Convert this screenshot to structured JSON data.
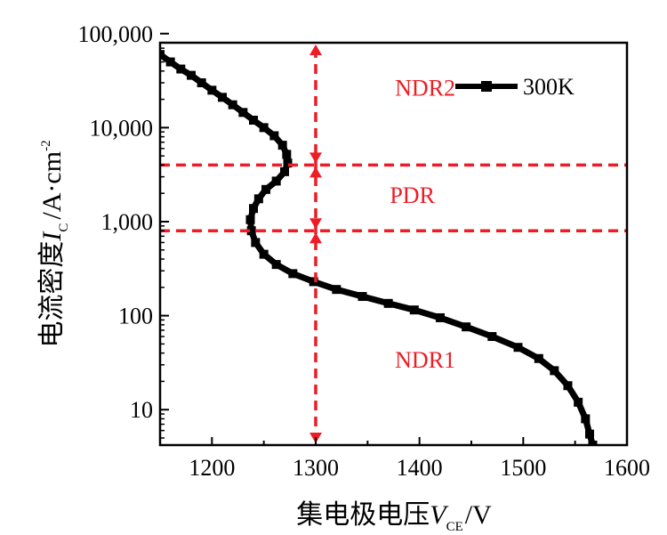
{
  "chart_data": {
    "type": "scatter",
    "title": "",
    "xlabel": {
      "main": "集电极电压",
      "var": "V",
      "sub": "CE",
      "unit": "/V"
    },
    "ylabel": {
      "main": "电流密度",
      "var": "I",
      "sub": "C",
      "unit": "/A·cm",
      "sup": "-2"
    },
    "xlim": [
      1150,
      1600
    ],
    "ylim": [
      4.2,
      80000
    ],
    "yscale": "log",
    "xticks": [
      1200,
      1300,
      1400,
      1500,
      1600
    ],
    "xtick_labels": [
      "1200",
      "1300",
      "1400",
      "1500",
      "1600"
    ],
    "yticks": [
      10,
      100,
      1000,
      10000,
      100000
    ],
    "ytick_labels": [
      "10",
      "100",
      "1,000",
      "10,000",
      "100,000"
    ],
    "grid": false,
    "legend": {
      "position": "top-right",
      "entries": [
        "300K"
      ]
    },
    "series": [
      {
        "name": "300K",
        "color": "#000000",
        "marker": "square",
        "x": [
          1150,
          1160,
          1170,
          1180,
          1190,
          1200,
          1210,
          1220,
          1230,
          1240,
          1250,
          1260,
          1268,
          1272,
          1273,
          1270,
          1262,
          1252,
          1245,
          1240,
          1237,
          1238,
          1242,
          1250,
          1262,
          1278,
          1298,
          1320,
          1345,
          1370,
          1395,
          1420,
          1445,
          1470,
          1495,
          1515,
          1530,
          1543,
          1553,
          1560,
          1564,
          1567
        ],
        "y": [
          60000,
          50000,
          42000,
          36000,
          30000,
          25000,
          21000,
          17500,
          14500,
          12000,
          10000,
          8200,
          6500,
          5200,
          4200,
          3400,
          2700,
          2200,
          1750,
          1380,
          1050,
          800,
          600,
          450,
          350,
          280,
          230,
          190,
          160,
          135,
          115,
          95,
          76,
          60,
          46,
          35,
          26,
          18,
          12,
          8,
          5.5,
          4.2
        ]
      }
    ],
    "reference_lines": [
      {
        "orientation": "horizontal",
        "y": 4000,
        "color": "#ee1c25"
      },
      {
        "orientation": "horizontal",
        "y": 800,
        "color": "#ee1c25"
      },
      {
        "orientation": "vertical",
        "x": 1300,
        "color": "#ee1c25"
      }
    ],
    "annotations": [
      {
        "text": "NDR2",
        "x": 1355,
        "y": 25000,
        "color": "#ee1c25"
      },
      {
        "text": "PDR",
        "x": 1350,
        "y": 1800,
        "color": "#ee1c25"
      },
      {
        "text": "NDR1",
        "x": 1355,
        "y": 32,
        "color": "#ee1c25"
      }
    ]
  }
}
